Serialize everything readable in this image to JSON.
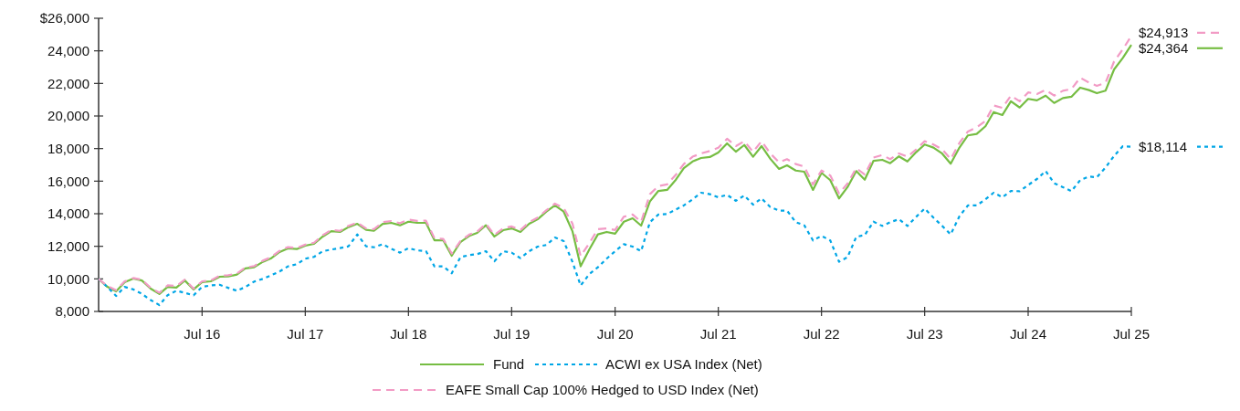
{
  "chart_data": {
    "type": "line",
    "x": [
      "2015-07",
      "2015-08",
      "2015-09",
      "2015-10",
      "2015-11",
      "2015-12",
      "2016-01",
      "2016-02",
      "2016-03",
      "2016-04",
      "2016-05",
      "2016-06",
      "2016-07",
      "2016-08",
      "2016-09",
      "2016-10",
      "2016-11",
      "2016-12",
      "2017-01",
      "2017-02",
      "2017-03",
      "2017-04",
      "2017-05",
      "2017-06",
      "2017-07",
      "2017-08",
      "2017-09",
      "2017-10",
      "2017-11",
      "2017-12",
      "2018-01",
      "2018-02",
      "2018-03",
      "2018-04",
      "2018-05",
      "2018-06",
      "2018-07",
      "2018-08",
      "2018-09",
      "2018-10",
      "2018-11",
      "2018-12",
      "2019-01",
      "2019-02",
      "2019-03",
      "2019-04",
      "2019-05",
      "2019-06",
      "2019-07",
      "2019-08",
      "2019-09",
      "2019-10",
      "2019-11",
      "2019-12",
      "2020-01",
      "2020-02",
      "2020-03",
      "2020-04",
      "2020-05",
      "2020-06",
      "2020-07",
      "2020-08",
      "2020-09",
      "2020-10",
      "2020-11",
      "2020-12",
      "2021-01",
      "2021-02",
      "2021-03",
      "2021-04",
      "2021-05",
      "2021-06",
      "2021-07",
      "2021-08",
      "2021-09",
      "2021-10",
      "2021-11",
      "2021-12",
      "2022-01",
      "2022-02",
      "2022-03",
      "2022-04",
      "2022-05",
      "2022-06",
      "2022-07",
      "2022-08",
      "2022-09",
      "2022-10",
      "2022-11",
      "2022-12",
      "2023-01",
      "2023-02",
      "2023-03",
      "2023-04",
      "2023-05",
      "2023-06",
      "2023-07",
      "2023-08",
      "2023-09",
      "2023-10",
      "2023-11",
      "2023-12",
      "2024-01",
      "2024-02",
      "2024-03",
      "2024-04",
      "2024-05",
      "2024-06",
      "2024-07",
      "2024-08",
      "2024-09",
      "2024-10",
      "2024-11",
      "2024-12",
      "2025-01",
      "2025-02",
      "2025-03",
      "2025-04",
      "2025-05",
      "2025-06",
      "2025-07"
    ],
    "series": [
      {
        "name": "Fund",
        "color": "#76bd43",
        "line_style": "solid",
        "values": [
          10000,
          9510,
          9230,
          9800,
          10020,
          9900,
          9400,
          9070,
          9510,
          9460,
          9900,
          9350,
          9800,
          9850,
          10130,
          10150,
          10260,
          10640,
          10710,
          11050,
          11250,
          11650,
          11870,
          11830,
          12040,
          12150,
          12600,
          12930,
          12880,
          13180,
          13380,
          13010,
          12950,
          13380,
          13440,
          13290,
          13510,
          13440,
          13440,
          12370,
          12370,
          11420,
          12260,
          12640,
          12820,
          13290,
          12600,
          12990,
          13100,
          12880,
          13380,
          13660,
          14130,
          14510,
          14130,
          12930,
          10770,
          11810,
          12730,
          12880,
          12770,
          13510,
          13720,
          13270,
          14750,
          15400,
          15460,
          16090,
          16800,
          17210,
          17420,
          17480,
          17760,
          18320,
          17810,
          18220,
          17500,
          18150,
          17370,
          16750,
          16970,
          16650,
          16580,
          15460,
          16510,
          16060,
          14940,
          15630,
          16620,
          16090,
          17250,
          17310,
          17100,
          17520,
          17210,
          17780,
          18250,
          18060,
          17690,
          17070,
          18060,
          18810,
          18900,
          19370,
          20240,
          20060,
          20900,
          20520,
          21050,
          20960,
          21250,
          20800,
          21100,
          21180,
          21740,
          21590,
          21400,
          21560,
          22860,
          23570,
          24364
        ],
        "value_labels": [
          null,
          null,
          null,
          null,
          null,
          null,
          null,
          null,
          null,
          null,
          null,
          null,
          null,
          null,
          null,
          null,
          null,
          null,
          null,
          null,
          null,
          null,
          null,
          null,
          null,
          null,
          null,
          null,
          null,
          null,
          null,
          null,
          null,
          null,
          null,
          null,
          null,
          null,
          null,
          null,
          null,
          null,
          null,
          null,
          null,
          null,
          null,
          null,
          null,
          null,
          null,
          null,
          null,
          null,
          null,
          null,
          null,
          null,
          null,
          null,
          null,
          null,
          null,
          null,
          null,
          null,
          null,
          null,
          null,
          null,
          null,
          null,
          null,
          null,
          null,
          null,
          null,
          null,
          null,
          null,
          null,
          null,
          null,
          null,
          null,
          null,
          null,
          null,
          null,
          null,
          null,
          null,
          null,
          null,
          null,
          null,
          null,
          null,
          null,
          null,
          null,
          null,
          null,
          null,
          null,
          null,
          null,
          null,
          null,
          null,
          null,
          null,
          null,
          null,
          null,
          null,
          null,
          null,
          null,
          null,
          "$24,364"
        ]
      },
      {
        "name": "ACWI ex USA Index (Net)",
        "color": "#00a6e6",
        "line_style": "dotted",
        "values": [
          10000,
          9500,
          8950,
          9510,
          9350,
          9080,
          8700,
          8390,
          9000,
          9270,
          9140,
          8990,
          9510,
          9600,
          9640,
          9450,
          9270,
          9500,
          9830,
          10000,
          10210,
          10450,
          10770,
          10900,
          11240,
          11350,
          11700,
          11800,
          11890,
          12000,
          12730,
          12000,
          11940,
          12130,
          11850,
          11610,
          11890,
          11750,
          11700,
          10770,
          10770,
          10340,
          11330,
          11460,
          11520,
          11700,
          11080,
          11700,
          11610,
          11270,
          11700,
          11980,
          12080,
          12540,
          12320,
          11050,
          9590,
          10300,
          10710,
          11240,
          11700,
          12130,
          11980,
          11700,
          13480,
          13950,
          13980,
          14260,
          14510,
          14880,
          15290,
          15200,
          15010,
          15160,
          14790,
          15120,
          14560,
          14940,
          14410,
          14190,
          14190,
          13480,
          13290,
          12360,
          12640,
          12360,
          11050,
          11330,
          12580,
          12690,
          13510,
          13250,
          13480,
          13660,
          13250,
          13810,
          14320,
          13760,
          13250,
          12730,
          13850,
          14510,
          14510,
          14880,
          15290,
          15010,
          15400,
          15380,
          15760,
          16130,
          16620,
          15870,
          15630,
          15380,
          16060,
          16280,
          16240,
          16840,
          17550,
          18150,
          18114
        ],
        "value_labels": [
          null,
          null,
          null,
          null,
          null,
          null,
          null,
          null,
          null,
          null,
          null,
          null,
          null,
          null,
          null,
          null,
          null,
          null,
          null,
          null,
          null,
          null,
          null,
          null,
          null,
          null,
          null,
          null,
          null,
          null,
          null,
          null,
          null,
          null,
          null,
          null,
          null,
          null,
          null,
          null,
          null,
          null,
          null,
          null,
          null,
          null,
          null,
          null,
          null,
          null,
          null,
          null,
          null,
          null,
          null,
          null,
          null,
          null,
          null,
          null,
          null,
          null,
          null,
          null,
          null,
          null,
          null,
          null,
          null,
          null,
          null,
          null,
          null,
          null,
          null,
          null,
          null,
          null,
          null,
          null,
          null,
          null,
          null,
          null,
          null,
          null,
          null,
          null,
          null,
          null,
          null,
          null,
          null,
          null,
          null,
          null,
          null,
          null,
          null,
          null,
          null,
          null,
          null,
          null,
          null,
          null,
          null,
          null,
          null,
          null,
          null,
          null,
          null,
          null,
          null,
          null,
          null,
          null,
          null,
          null,
          "$18,114"
        ]
      },
      {
        "name": "EAFE Small Cap 100% Hedged to USD Index (Net)",
        "color": "#f29bc5",
        "line_style": "dashed",
        "values": [
          10000,
          9560,
          9300,
          9850,
          10050,
          9950,
          9450,
          9150,
          9600,
          9560,
          9950,
          9400,
          9850,
          9900,
          10200,
          10220,
          10330,
          10700,
          10780,
          11120,
          11320,
          11720,
          11950,
          11900,
          12100,
          12220,
          12680,
          13000,
          12950,
          13260,
          13450,
          13100,
          13050,
          13480,
          13550,
          13420,
          13640,
          13560,
          13570,
          12500,
          12450,
          11560,
          12320,
          12720,
          12900,
          13380,
          12700,
          13100,
          13220,
          13000,
          13480,
          13760,
          14220,
          14620,
          14350,
          13400,
          11400,
          12200,
          13050,
          13100,
          13000,
          13820,
          13950,
          13500,
          15200,
          15700,
          15800,
          16400,
          17050,
          17500,
          17700,
          17850,
          18050,
          18600,
          18150,
          18450,
          17800,
          18450,
          17700,
          17150,
          17350,
          17050,
          16900,
          15800,
          16650,
          16350,
          15250,
          15850,
          16800,
          16400,
          17450,
          17600,
          17350,
          17700,
          17500,
          17950,
          18450,
          18250,
          17950,
          17350,
          18350,
          19050,
          19300,
          19700,
          20650,
          20500,
          21250,
          20900,
          21450,
          21350,
          21600,
          21250,
          21550,
          21650,
          22350,
          22050,
          21850,
          22050,
          23350,
          24100,
          24913
        ],
        "value_labels": [
          null,
          null,
          null,
          null,
          null,
          null,
          null,
          null,
          null,
          null,
          null,
          null,
          null,
          null,
          null,
          null,
          null,
          null,
          null,
          null,
          null,
          null,
          null,
          null,
          null,
          null,
          null,
          null,
          null,
          null,
          null,
          null,
          null,
          null,
          null,
          null,
          null,
          null,
          null,
          null,
          null,
          null,
          null,
          null,
          null,
          null,
          null,
          null,
          null,
          null,
          null,
          null,
          null,
          null,
          null,
          null,
          null,
          null,
          null,
          null,
          null,
          null,
          null,
          null,
          null,
          null,
          null,
          null,
          null,
          null,
          null,
          null,
          null,
          null,
          null,
          null,
          null,
          null,
          null,
          null,
          null,
          null,
          null,
          null,
          null,
          null,
          null,
          null,
          null,
          null,
          null,
          null,
          null,
          null,
          null,
          null,
          null,
          null,
          null,
          null,
          null,
          null,
          null,
          null,
          null,
          null,
          null,
          null,
          null,
          null,
          null,
          null,
          null,
          null,
          null,
          null,
          null,
          null,
          null,
          null,
          "$24,913"
        ]
      }
    ],
    "xlim": [
      "2015-07",
      "2025-07"
    ],
    "xticks": [
      {
        "value": "2016-07",
        "label": "Jul 16"
      },
      {
        "value": "2017-07",
        "label": "Jul 17"
      },
      {
        "value": "2018-07",
        "label": "Jul 18"
      },
      {
        "value": "2019-07",
        "label": "Jul 19"
      },
      {
        "value": "2020-07",
        "label": "Jul 20"
      },
      {
        "value": "2021-07",
        "label": "Jul 21"
      },
      {
        "value": "2022-07",
        "label": "Jul 22"
      },
      {
        "value": "2023-07",
        "label": "Jul 23"
      },
      {
        "value": "2024-07",
        "label": "Jul 24"
      },
      {
        "value": "2025-07",
        "label": "Jul 25"
      }
    ],
    "ylim": [
      8000,
      26000
    ],
    "yticks": [
      {
        "value": 8000,
        "label": "8,000"
      },
      {
        "value": 10000,
        "label": "10,000"
      },
      {
        "value": 12000,
        "label": "12,000"
      },
      {
        "value": 14000,
        "label": "14,000"
      },
      {
        "value": 16000,
        "label": "16,000"
      },
      {
        "value": 18000,
        "label": "18,000"
      },
      {
        "value": 20000,
        "label": "20,000"
      },
      {
        "value": 22000,
        "label": "22,000"
      },
      {
        "value": 24000,
        "label": "24,000"
      },
      {
        "value": 26000,
        "label": "$26,000"
      }
    ],
    "grid": false,
    "marker": "none",
    "legend": "bottom"
  }
}
